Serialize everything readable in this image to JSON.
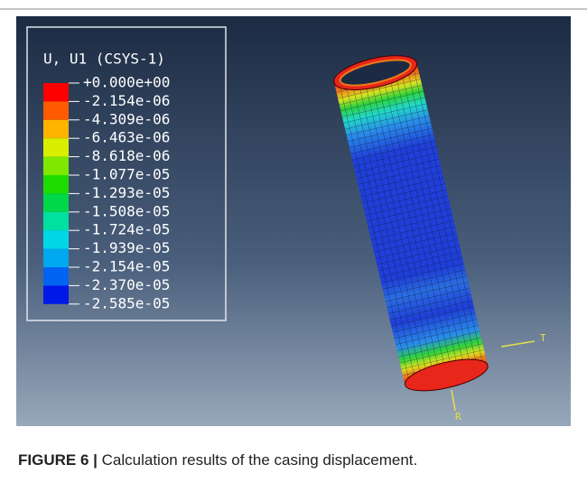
{
  "figure": {
    "legend_title": "U, U1 (CSYS-1)",
    "legend_labels": [
      "+0.000e+00",
      "-2.154e-06",
      "-4.309e-06",
      "-6.463e-06",
      "-8.618e-06",
      "-1.077e-05",
      "-1.293e-05",
      "-1.508e-05",
      "-1.724e-05",
      "-1.939e-05",
      "-2.154e-05",
      "-2.370e-05",
      "-2.585e-05"
    ],
    "axis_labels": [
      "T",
      "R"
    ]
  },
  "caption": {
    "label": "FIGURE 6 |",
    "text": "Calculation results of the casing displacement."
  }
}
